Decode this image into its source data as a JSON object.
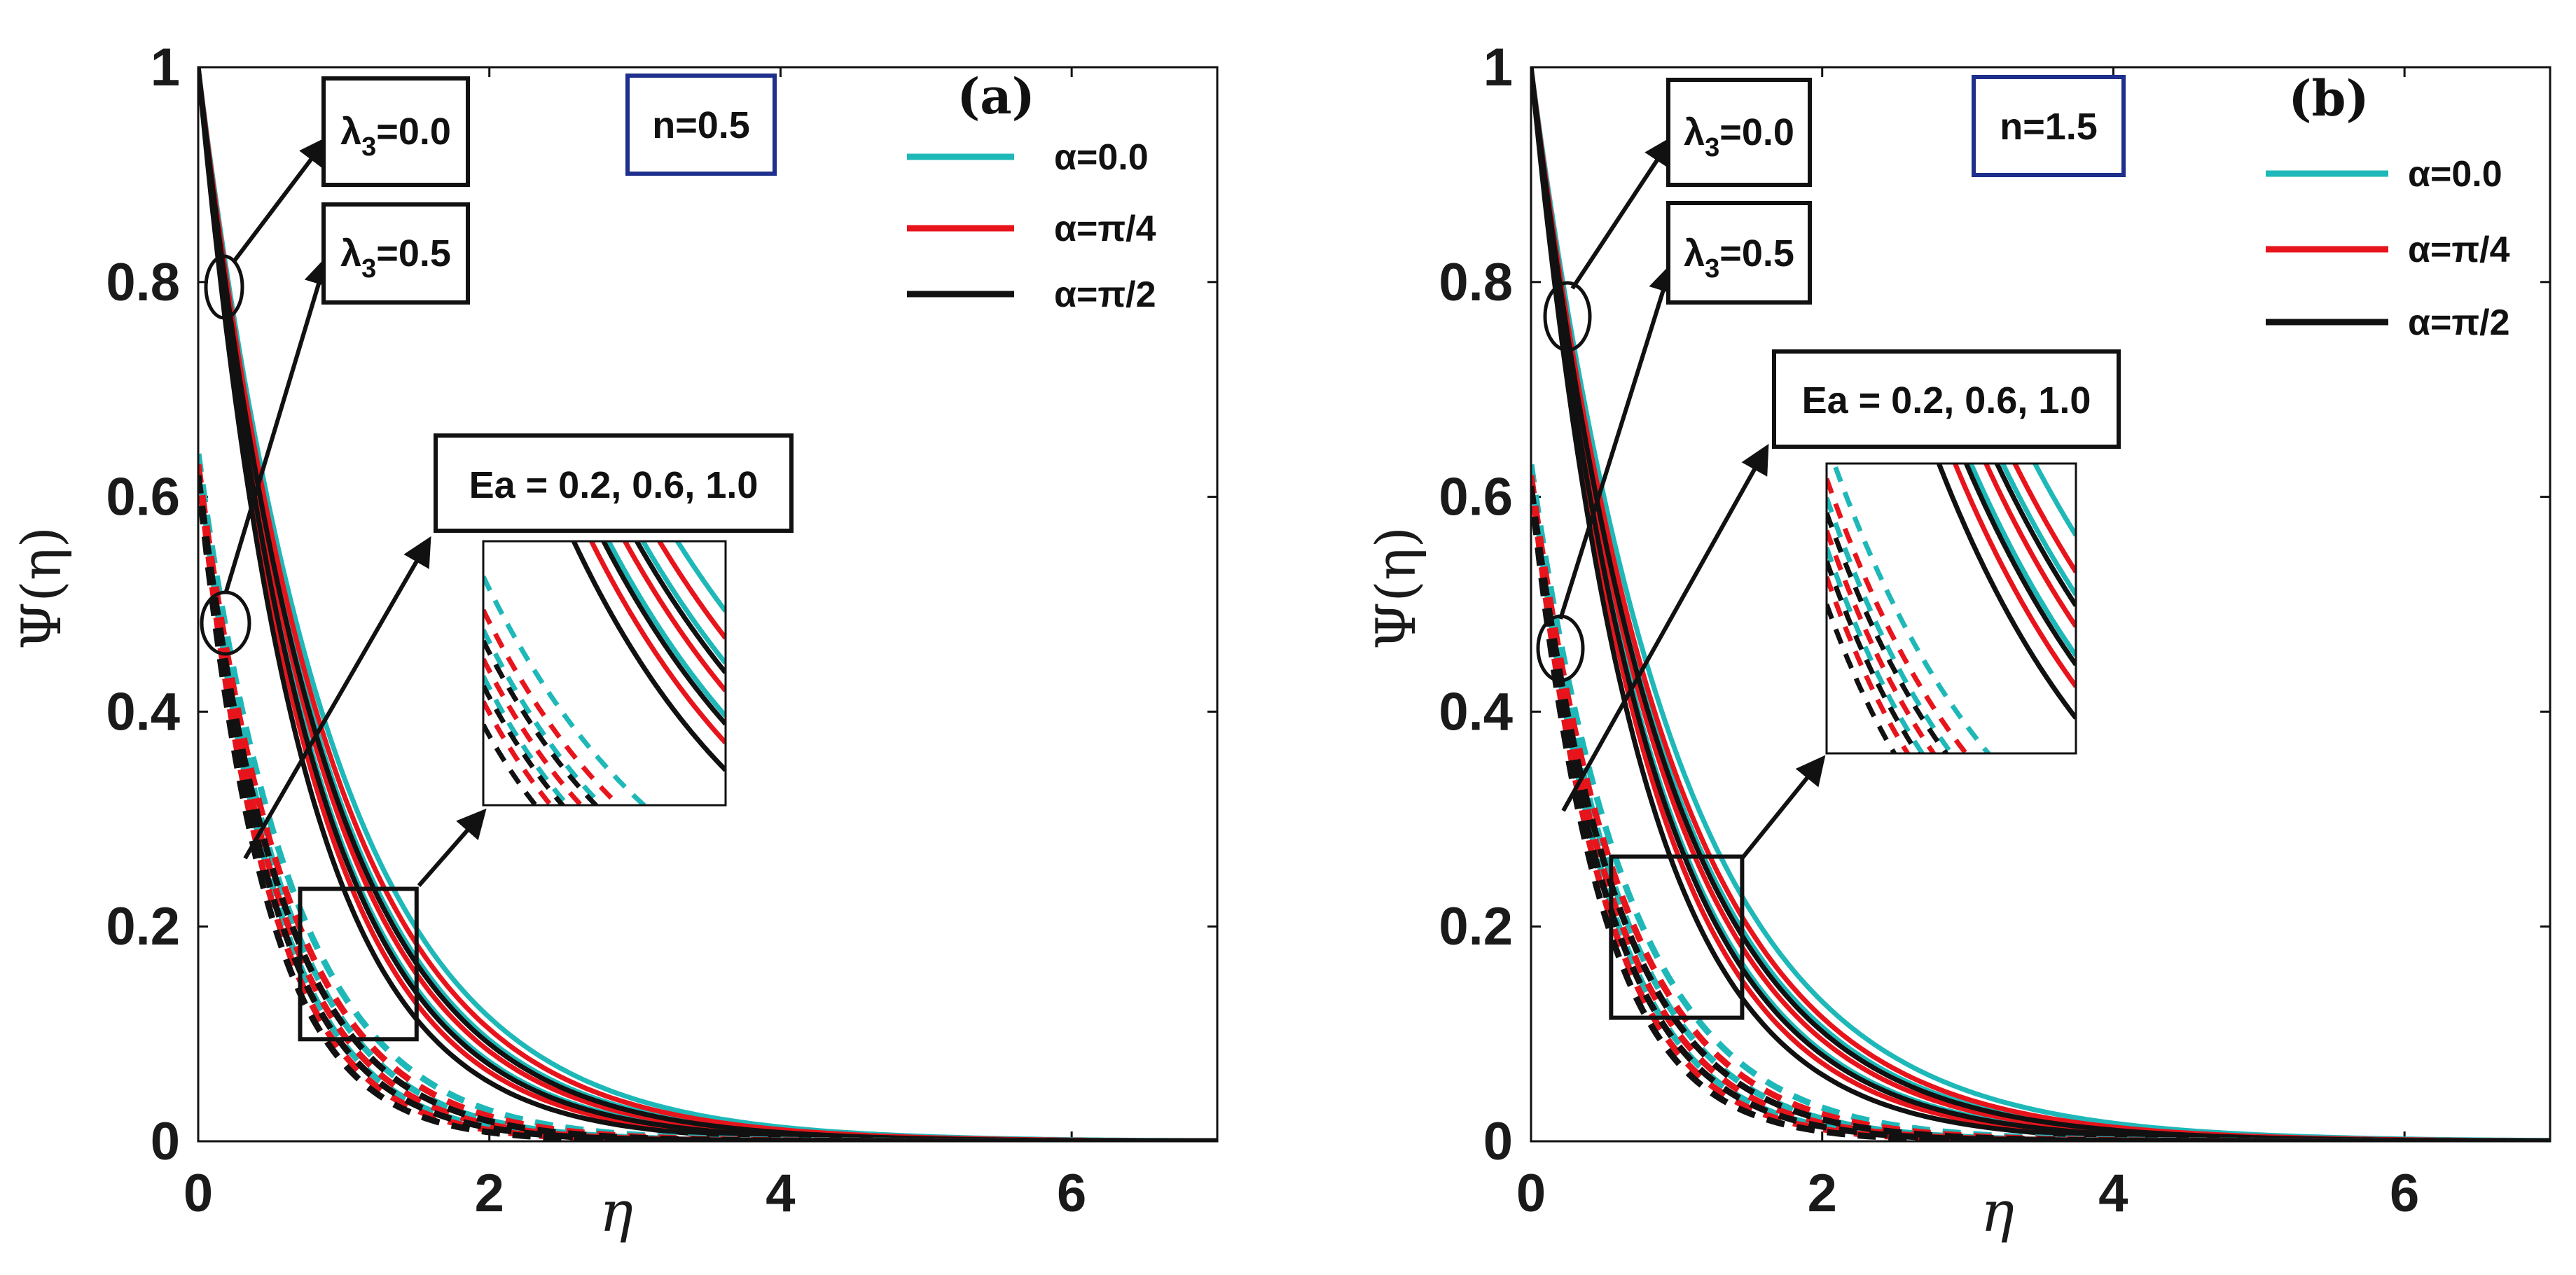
{
  "chart_data": [
    {
      "type": "line",
      "panel_label": "(a)",
      "n_label": "n=0.5",
      "xlabel": "η",
      "ylabel": "Ψ(η)",
      "xlim": [
        0,
        7
      ],
      "ylim": [
        0,
        1
      ],
      "xticks": [
        "0",
        "2",
        "4",
        "6"
      ],
      "yticks": [
        "0",
        "0.2",
        "0.4",
        "0.6",
        "0.8",
        "1"
      ],
      "legend": [
        {
          "label": "α=0.0",
          "color": "#1fb8b8"
        },
        {
          "label": "α=π/4",
          "color": "#e8141c"
        },
        {
          "label": "α=π/2",
          "color": "#111111"
        }
      ],
      "annotations": {
        "lambda_a": {
          "sym": "λ",
          "sub": "3",
          "rest": "=0.0"
        },
        "lambda_b": {
          "sym": "λ",
          "sub": "3",
          "rest": "=0.5"
        },
        "ea": "Ea = 0.2, 0.6, 1.0"
      },
      "series": [
        {
          "name": "α=0.0, Ea=0.2, λ3=0.0",
          "color": "#1fb8b8",
          "dash": false,
          "psi0": 1.0,
          "decay": 1.08
        },
        {
          "name": "α=0.0, Ea=0.6, λ3=0.0",
          "color": "#1fb8b8",
          "dash": false,
          "psi0": 1.0,
          "decay": 1.18
        },
        {
          "name": "α=0.0, Ea=1.0, λ3=0.0",
          "color": "#1fb8b8",
          "dash": false,
          "psi0": 1.0,
          "decay": 1.3
        },
        {
          "name": "α=π/4, Ea=0.2, λ3=0.0",
          "color": "#e8141c",
          "dash": false,
          "psi0": 1.0,
          "decay": 1.13
        },
        {
          "name": "α=π/4, Ea=0.6, λ3=0.0",
          "color": "#e8141c",
          "dash": false,
          "psi0": 1.0,
          "decay": 1.24
        },
        {
          "name": "α=π/4, Ea=1.0, λ3=0.0",
          "color": "#e8141c",
          "dash": false,
          "psi0": 1.0,
          "decay": 1.37
        },
        {
          "name": "α=π/2, Ea=0.2, λ3=0.0",
          "color": "#111111",
          "dash": false,
          "psi0": 1.0,
          "decay": 1.2
        },
        {
          "name": "α=π/2, Ea=0.6, λ3=0.0",
          "color": "#111111",
          "dash": false,
          "psi0": 1.0,
          "decay": 1.32
        },
        {
          "name": "α=π/2, Ea=1.0, λ3=0.0",
          "color": "#111111",
          "dash": false,
          "psi0": 1.0,
          "decay": 1.45
        },
        {
          "name": "α=0.0, Ea=0.2, λ3=0.5",
          "color": "#1fb8b8",
          "dash": true,
          "psi0": 0.64,
          "decay": 1.55
        },
        {
          "name": "α=0.0, Ea=0.6, λ3=0.5",
          "color": "#1fb8b8",
          "dash": true,
          "psi0": 0.64,
          "decay": 1.75
        },
        {
          "name": "α=0.0, Ea=1.0, λ3=0.5",
          "color": "#1fb8b8",
          "dash": true,
          "psi0": 0.64,
          "decay": 1.95
        },
        {
          "name": "α=π/4, Ea=0.2, λ3=0.5",
          "color": "#e8141c",
          "dash": true,
          "psi0": 0.63,
          "decay": 1.65
        },
        {
          "name": "α=π/4, Ea=0.6, λ3=0.5",
          "color": "#e8141c",
          "dash": true,
          "psi0": 0.63,
          "decay": 1.85
        },
        {
          "name": "α=π/4, Ea=1.0, λ3=0.5",
          "color": "#e8141c",
          "dash": true,
          "psi0": 0.63,
          "decay": 2.05
        },
        {
          "name": "α=π/2, Ea=0.2, λ3=0.5",
          "color": "#111111",
          "dash": true,
          "psi0": 0.62,
          "decay": 1.75
        },
        {
          "name": "α=π/2, Ea=0.6, λ3=0.5",
          "color": "#111111",
          "dash": true,
          "psi0": 0.62,
          "decay": 1.95
        },
        {
          "name": "α=π/2, Ea=1.0, λ3=0.5",
          "color": "#111111",
          "dash": true,
          "psi0": 0.62,
          "decay": 2.15
        }
      ],
      "zoom_region": {
        "x": [
          0.7,
          1.5
        ],
        "y": [
          0.095,
          0.235
        ]
      }
    },
    {
      "type": "line",
      "panel_label": "(b)",
      "n_label": "n=1.5",
      "xlabel": "η",
      "ylabel": "Ψ(η)",
      "xlim": [
        0,
        7
      ],
      "ylim": [
        0,
        1
      ],
      "xticks": [
        "0",
        "2",
        "4",
        "6"
      ],
      "yticks": [
        "0",
        "0.2",
        "0.4",
        "0.6",
        "0.8",
        "1"
      ],
      "legend": [
        {
          "label": "α=0.0",
          "color": "#1fb8b8"
        },
        {
          "label": "α=π/4",
          "color": "#e8141c"
        },
        {
          "label": "α=π/2",
          "color": "#111111"
        }
      ],
      "annotations": {
        "lambda_a": {
          "sym": "λ",
          "sub": "3",
          "rest": "=0.0"
        },
        "lambda_b": {
          "sym": "λ",
          "sub": "3",
          "rest": "=0.5"
        },
        "ea": "Ea = 0.2, 0.6, 1.0"
      },
      "series": [
        {
          "name": "α=0.0, Ea=0.2, λ3=0.0",
          "color": "#1fb8b8",
          "dash": false,
          "psi0": 1.0,
          "decay": 1.02
        },
        {
          "name": "α=0.0, Ea=0.6, λ3=0.0",
          "color": "#1fb8b8",
          "dash": false,
          "psi0": 1.0,
          "decay": 1.12
        },
        {
          "name": "α=0.0, Ea=1.0, λ3=0.0",
          "color": "#1fb8b8",
          "dash": false,
          "psi0": 1.0,
          "decay": 1.24
        },
        {
          "name": "α=π/4, Ea=0.2, λ3=0.0",
          "color": "#e8141c",
          "dash": false,
          "psi0": 1.0,
          "decay": 1.08
        },
        {
          "name": "α=π/4, Ea=0.6, λ3=0.0",
          "color": "#e8141c",
          "dash": false,
          "psi0": 1.0,
          "decay": 1.18
        },
        {
          "name": "α=π/4, Ea=1.0, λ3=0.0",
          "color": "#e8141c",
          "dash": false,
          "psi0": 1.0,
          "decay": 1.31
        },
        {
          "name": "α=π/2, Ea=0.2, λ3=0.0",
          "color": "#111111",
          "dash": false,
          "psi0": 1.0,
          "decay": 1.14
        },
        {
          "name": "α=π/2, Ea=0.6, λ3=0.0",
          "color": "#111111",
          "dash": false,
          "psi0": 1.0,
          "decay": 1.26
        },
        {
          "name": "α=π/2, Ea=1.0, λ3=0.0",
          "color": "#111111",
          "dash": false,
          "psi0": 1.0,
          "decay": 1.39
        },
        {
          "name": "α=0.0, Ea=0.2, λ3=0.5",
          "color": "#1fb8b8",
          "dash": true,
          "psi0": 0.63,
          "decay": 1.5
        },
        {
          "name": "α=0.0, Ea=0.6, λ3=0.5",
          "color": "#1fb8b8",
          "dash": true,
          "psi0": 0.63,
          "decay": 1.7
        },
        {
          "name": "α=0.0, Ea=1.0, λ3=0.5",
          "color": "#1fb8b8",
          "dash": true,
          "psi0": 0.63,
          "decay": 1.9
        },
        {
          "name": "α=π/4, Ea=0.2, λ3=0.5",
          "color": "#e8141c",
          "dash": true,
          "psi0": 0.62,
          "decay": 1.6
        },
        {
          "name": "α=π/4, Ea=0.6, λ3=0.5",
          "color": "#e8141c",
          "dash": true,
          "psi0": 0.62,
          "decay": 1.8
        },
        {
          "name": "α=π/4, Ea=1.0, λ3=0.5",
          "color": "#e8141c",
          "dash": true,
          "psi0": 0.62,
          "decay": 2.0
        },
        {
          "name": "α=π/2, Ea=0.2, λ3=0.5",
          "color": "#111111",
          "dash": true,
          "psi0": 0.61,
          "decay": 1.7
        },
        {
          "name": "α=π/2, Ea=0.6, λ3=0.5",
          "color": "#111111",
          "dash": true,
          "psi0": 0.61,
          "decay": 1.9
        },
        {
          "name": "α=π/2, Ea=1.0, λ3=0.5",
          "color": "#111111",
          "dash": true,
          "psi0": 0.61,
          "decay": 2.1
        }
      ],
      "zoom_region": {
        "x": [
          0.55,
          1.45
        ],
        "y": [
          0.115,
          0.265
        ]
      }
    }
  ]
}
